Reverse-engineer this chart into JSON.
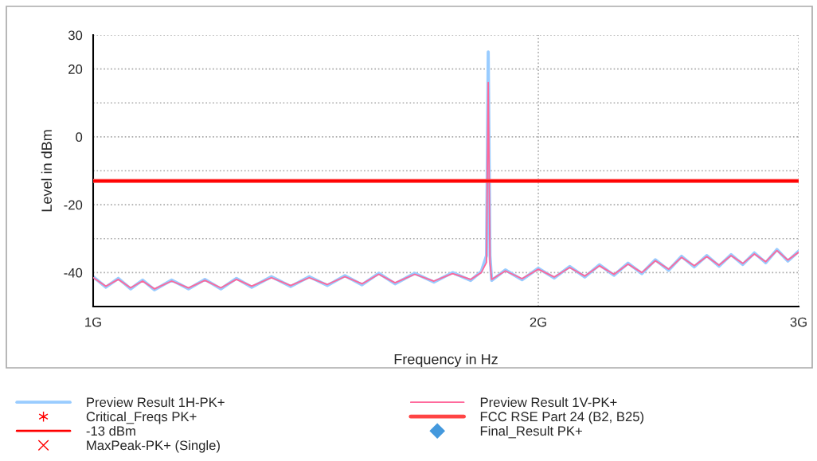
{
  "chart_data": {
    "type": "line",
    "xlabel": "Frequency in Hz",
    "ylabel": "Level in dBm",
    "log": "x",
    "xlim": [
      1,
      3
    ],
    "xticks": [
      {
        "value": 1,
        "label": "1G"
      },
      {
        "value": 2,
        "label": "2G"
      },
      {
        "value": 3,
        "label": "3G"
      }
    ],
    "ylim": [
      -50,
      30
    ],
    "yticks": [
      30,
      20,
      {
        "value": 10,
        "label": null
      },
      0,
      {
        "value": -10,
        "label": null
      },
      -20,
      {
        "value": -30,
        "label": null
      },
      -40,
      {
        "value": -50,
        "label": null
      }
    ],
    "grid": true,
    "legend": "bottom",
    "series": [
      {
        "name": "Preview Result 1H-PK+",
        "color": "#99ccff",
        "x": [
          1.0,
          1.02,
          1.04,
          1.06,
          1.08,
          1.1,
          1.13,
          1.16,
          1.19,
          1.22,
          1.25,
          1.28,
          1.32,
          1.36,
          1.4,
          1.44,
          1.48,
          1.52,
          1.56,
          1.6,
          1.65,
          1.7,
          1.75,
          1.8,
          1.83,
          1.845,
          1.85,
          1.855,
          1.86,
          1.9,
          1.95,
          2.0,
          2.05,
          2.1,
          2.15,
          2.2,
          2.25,
          2.3,
          2.35,
          2.4,
          2.45,
          2.5,
          2.55,
          2.6,
          2.65,
          2.7,
          2.75,
          2.8,
          2.85,
          2.9,
          2.95,
          3.0
        ],
        "values": [
          -41.2,
          -44.3,
          -41.7,
          -44.8,
          -42.2,
          -45.1,
          -42.2,
          -44.8,
          -42,
          -44.8,
          -41.7,
          -44.3,
          -41.2,
          -44.1,
          -41.2,
          -43.8,
          -40.9,
          -43.6,
          -40.2,
          -43.3,
          -40.2,
          -42.8,
          -40,
          -42.3,
          -39.7,
          -35,
          25,
          -35,
          -42.3,
          -39.2,
          -42.1,
          -38.7,
          -41.6,
          -38.2,
          -41.3,
          -37.7,
          -40.8,
          -37.2,
          -40.3,
          -36.2,
          -39.3,
          -35.2,
          -38.3,
          -35,
          -38.1,
          -34.7,
          -37.6,
          -34.2,
          -37.1,
          -33.2,
          -36.6,
          -33.7
        ]
      },
      {
        "name": "Preview Result 1V-PK+",
        "color": "#ff6699",
        "x": [
          1.0,
          1.02,
          1.04,
          1.06,
          1.08,
          1.1,
          1.13,
          1.16,
          1.19,
          1.22,
          1.25,
          1.28,
          1.32,
          1.36,
          1.4,
          1.44,
          1.48,
          1.52,
          1.56,
          1.6,
          1.65,
          1.7,
          1.75,
          1.8,
          1.83,
          1.845,
          1.85,
          1.855,
          1.86,
          1.9,
          1.95,
          2.0,
          2.05,
          2.1,
          2.15,
          2.2,
          2.25,
          2.3,
          2.35,
          2.4,
          2.45,
          2.5,
          2.55,
          2.6,
          2.65,
          2.7,
          2.75,
          2.8,
          2.85,
          2.9,
          2.95,
          3.0
        ],
        "values": [
          -41.5,
          -44,
          -42,
          -44.5,
          -42.5,
          -44.8,
          -42.5,
          -44.5,
          -42.3,
          -44.5,
          -42,
          -44,
          -41.5,
          -43.8,
          -41.5,
          -43.5,
          -41.2,
          -43.3,
          -40.5,
          -43,
          -40.5,
          -42.5,
          -40.3,
          -42,
          -40,
          -37,
          16,
          -37,
          -42,
          -39.5,
          -41.8,
          -39,
          -41.3,
          -38.5,
          -41,
          -38,
          -40.5,
          -37.5,
          -40,
          -36.5,
          -39,
          -35.5,
          -38,
          -35.3,
          -37.8,
          -35,
          -37.3,
          -34.5,
          -36.8,
          -33.5,
          -36.3,
          -34
        ]
      },
      {
        "name": "Critical_Freqs PK+",
        "type": "scatter",
        "marker": "star"
      },
      {
        "name": "FCC RSE Part 24 (B2, B25)",
        "color": "#ff4444",
        "x": [
          1,
          3
        ],
        "values": [
          -13,
          -13
        ]
      },
      {
        "name": "-13 dBm",
        "color": "#ff0000",
        "x": [
          1,
          3
        ],
        "values": [
          -13,
          -13
        ]
      },
      {
        "name": "Final_Result PK+",
        "type": "scatter",
        "marker": "diamond"
      },
      {
        "name": "MaxPeak-PK+ (Single)",
        "type": "scatter",
        "marker": "cross"
      }
    ]
  }
}
